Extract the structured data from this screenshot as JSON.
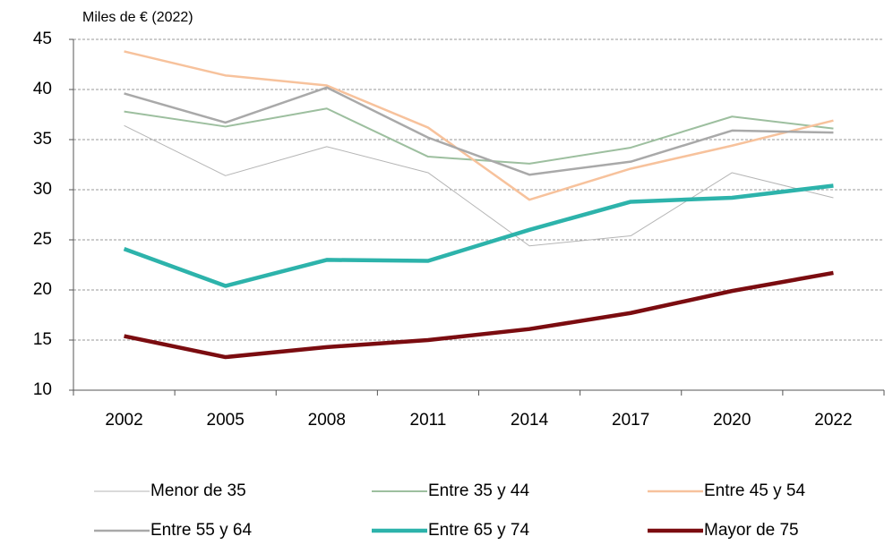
{
  "chart_data": {
    "type": "line",
    "y_label": "Miles de € (2022)",
    "categories": [
      "2002",
      "2005",
      "2008",
      "2011",
      "2014",
      "2017",
      "2020",
      "2022"
    ],
    "series": [
      {
        "name": "Menor de 35",
        "color": "#b5b5b5",
        "values": [
          36.4,
          31.4,
          34.3,
          31.7,
          24.4,
          25.4,
          31.7,
          29.2
        ]
      },
      {
        "name": "Entre 35 y 44",
        "color": "#9dbf9f",
        "values": [
          37.8,
          36.3,
          38.1,
          33.3,
          32.6,
          34.2,
          37.3,
          36.1
        ]
      },
      {
        "name": "Entre 45 y 54",
        "color": "#f7c29c",
        "values": [
          43.8,
          41.4,
          40.4,
          36.2,
          29.0,
          32.1,
          34.4,
          36.9
        ]
      },
      {
        "name": "Entre 55 y 64",
        "color": "#a9a9a9",
        "values": [
          39.6,
          36.7,
          40.2,
          35.2,
          31.5,
          32.8,
          35.9,
          35.7
        ]
      },
      {
        "name": "Entre 65 y 74",
        "color": "#2db3ab",
        "values": [
          24.1,
          20.4,
          23.0,
          22.9,
          26.0,
          28.8,
          29.2,
          30.4
        ]
      },
      {
        "name": "Mayor de 75",
        "color": "#7b0c10",
        "values": [
          15.4,
          13.3,
          14.3,
          15.0,
          16.1,
          17.7,
          19.9,
          21.7
        ]
      }
    ],
    "ylim": [
      10,
      45
    ],
    "yticks": [
      10,
      15,
      20,
      25,
      30,
      35,
      40,
      45
    ],
    "grid": true
  }
}
